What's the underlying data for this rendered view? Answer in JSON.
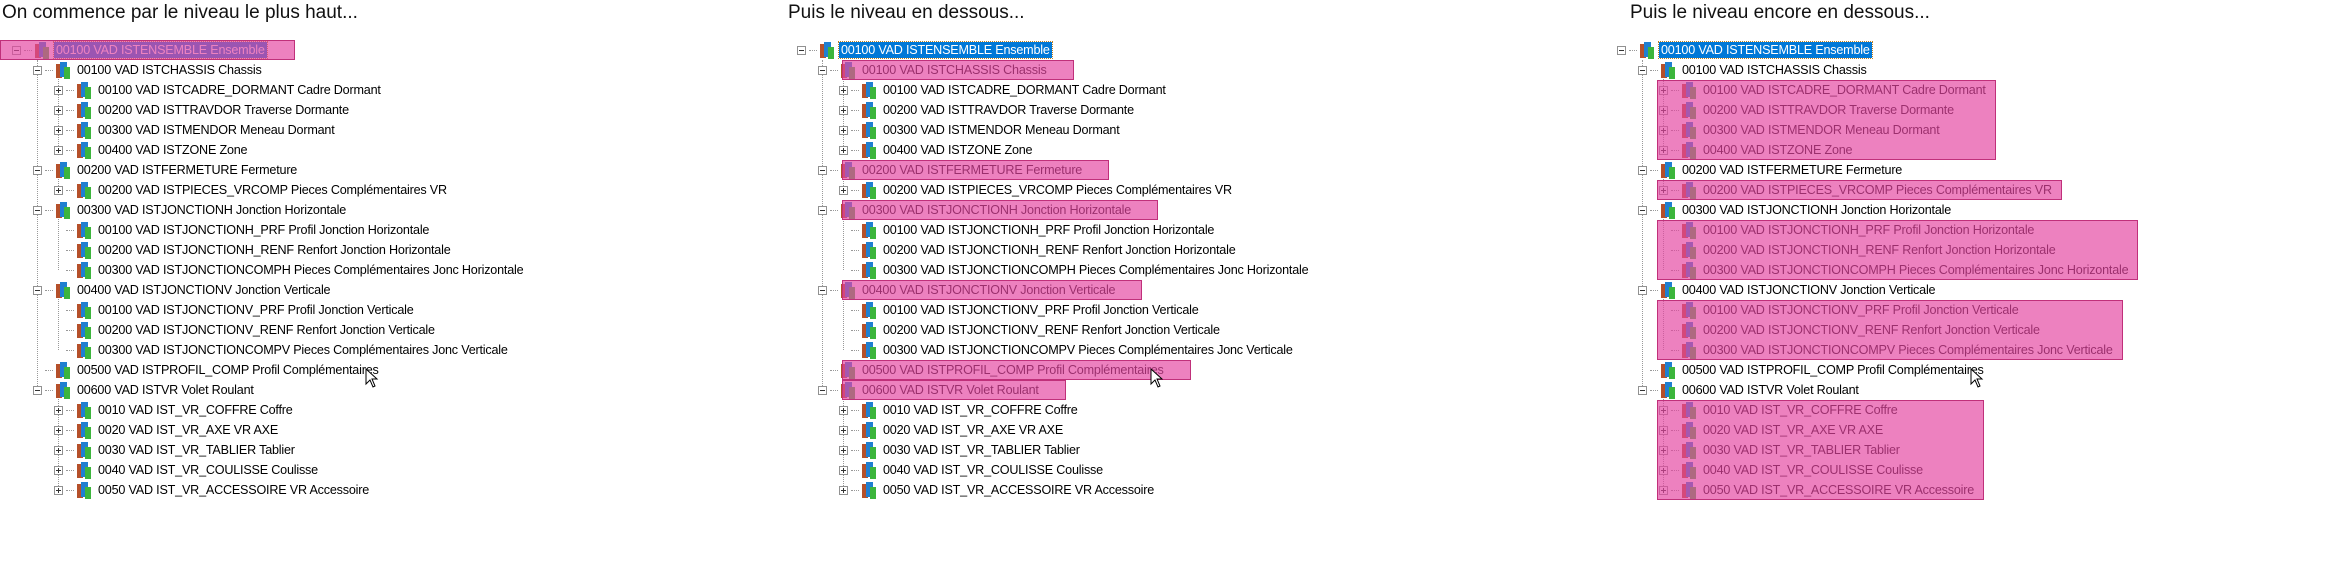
{
  "tree_nodes": [
    {
      "level": 0,
      "expander": "minus",
      "label": "00100 VAD ISTENSEMBLE Ensemble"
    },
    {
      "level": 1,
      "expander": "minus",
      "label": "00100 VAD ISTCHASSIS Chassis"
    },
    {
      "level": 2,
      "expander": "plus",
      "label": "00100 VAD ISTCADRE_DORMANT Cadre Dormant"
    },
    {
      "level": 2,
      "expander": "plus",
      "label": "00200 VAD ISTTRAVDOR Traverse Dormante"
    },
    {
      "level": 2,
      "expander": "plus",
      "label": "00300 VAD ISTMENDOR Meneau Dormant"
    },
    {
      "level": 2,
      "expander": "plus",
      "label": "00400 VAD ISTZONE Zone"
    },
    {
      "level": 1,
      "expander": "minus",
      "label": "00200 VAD ISTFERMETURE Fermeture"
    },
    {
      "level": 2,
      "expander": "plus",
      "label": "00200 VAD ISTPIECES_VRCOMP Pieces Complémentaires VR"
    },
    {
      "level": 1,
      "expander": "minus",
      "label": "00300 VAD ISTJONCTIONH Jonction Horizontale"
    },
    {
      "level": 2,
      "expander": "none",
      "label": "00100 VAD ISTJONCTIONH_PRF Profil Jonction Horizontale"
    },
    {
      "level": 2,
      "expander": "none",
      "label": "00200 VAD ISTJONCTIONH_RENF Renfort Jonction Horizontale"
    },
    {
      "level": 2,
      "expander": "none",
      "label": "00300 VAD ISTJONCTIONCOMPH Pieces Complémentaires Jonc Horizontale"
    },
    {
      "level": 1,
      "expander": "minus",
      "label": "00400 VAD ISTJONCTIONV Jonction Verticale"
    },
    {
      "level": 2,
      "expander": "none",
      "label": "00100 VAD ISTJONCTIONV_PRF Profil Jonction Verticale"
    },
    {
      "level": 2,
      "expander": "none",
      "label": "00200 VAD ISTJONCTIONV_RENF Renfort Jonction Verticale"
    },
    {
      "level": 2,
      "expander": "none",
      "label": "00300 VAD ISTJONCTIONCOMPV Pieces Complémentaires Jonc Verticale"
    },
    {
      "level": 1,
      "expander": "none",
      "label": "00500 VAD ISTPROFIL_COMP Profil Complémentaires"
    },
    {
      "level": 1,
      "expander": "minus",
      "label": "00600 VAD ISTVR Volet Roulant"
    },
    {
      "level": 2,
      "expander": "plus",
      "label": "0010 VAD IST_VR_COFFRE Coffre"
    },
    {
      "level": 2,
      "expander": "plus",
      "label": "0020 VAD IST_VR_AXE VR AXE"
    },
    {
      "level": 2,
      "expander": "plus",
      "label": "0030 VAD IST_VR_TABLIER Tablier"
    },
    {
      "level": 2,
      "expander": "plus",
      "label": "0040 VAD IST_VR_COULISSE Coulisse"
    },
    {
      "level": 2,
      "expander": "plus",
      "label": "0050 VAD IST_VR_ACCESSOIRE VR Accessoire"
    }
  ],
  "panels": [
    {
      "title": "On commence par le niveau le plus haut...",
      "selected_node": 0,
      "highlight_groups": [
        [
          0,
          0
        ]
      ],
      "cursor_on_node": 16
    },
    {
      "title": "Puis le niveau en dessous...",
      "selected_node": 0,
      "highlight_groups": [
        [
          1,
          1
        ],
        [
          6,
          6
        ],
        [
          8,
          8
        ],
        [
          12,
          12
        ],
        [
          16,
          16
        ],
        [
          17,
          17
        ]
      ],
      "cursor_on_node": 16
    },
    {
      "title": "Puis le niveau encore en dessous...",
      "selected_node": 0,
      "highlight_groups": [
        [
          2,
          5
        ],
        [
          7,
          7
        ],
        [
          9,
          11
        ],
        [
          13,
          15
        ],
        [
          18,
          22
        ]
      ],
      "cursor_on_node": 16
    }
  ],
  "colors": {
    "highlight": "#e446a0",
    "selection": "#0078d7"
  },
  "icons": {
    "node": "book-stack-icon",
    "cursor": "mouse-pointer-icon"
  }
}
